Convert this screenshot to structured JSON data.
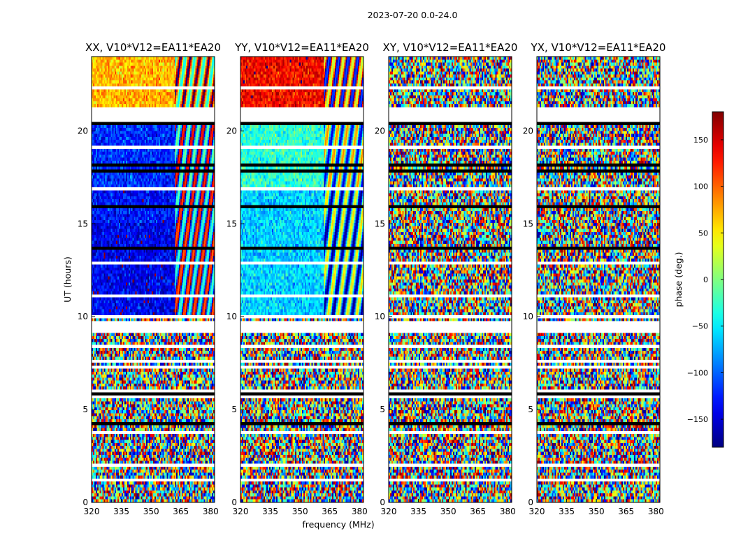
{
  "figure": {
    "suptitle": "2023-07-20 0.0-24.0"
  },
  "chart_data": {
    "type": "heatmap",
    "title": "2023-07-20 0.0-24.0",
    "xlabel": "frequency (MHz)",
    "ylabel": "UT (hours)",
    "xlim": [
      320,
      382
    ],
    "ylim": [
      0,
      24
    ],
    "xticks": [
      "320",
      "335",
      "350",
      "365",
      "380"
    ],
    "yticks": [
      "0",
      "5",
      "10",
      "15",
      "20"
    ],
    "colorbar": {
      "label": "phase (deg.)",
      "range": [
        -180,
        180
      ],
      "ticks": [
        "150",
        "100",
        "50",
        "0",
        "−50",
        "−100",
        "−150"
      ],
      "colormap": "jet"
    },
    "panels": [
      {
        "title": "XX, V10*V12=EA11*EA20",
        "dominant_phase_by_ut": {
          "0-10": "random",
          "10-17": "blue (−100 to −150)",
          "17-21": "blue/cyan (−120)",
          "22-24": "orange/yellow (+50 to +100)"
        }
      },
      {
        "title": "YY, V10*V12=EA11*EA20",
        "dominant_phase_by_ut": {
          "0-10": "random",
          "10-17": "cyan/green (−50 to −80)",
          "17-21": "green/cyan (−30)",
          "22-24": "red (+130)"
        }
      },
      {
        "title": "XY, V10*V12=EA11*EA20",
        "dominant_phase_by_ut": {
          "0-24": "random"
        }
      },
      {
        "title": "YX, V10*V12=EA11*EA20",
        "dominant_phase_by_ut": {
          "0-24": "random"
        }
      }
    ]
  },
  "colors": {
    "blank_rows": "#ffffff",
    "flagged_rows": "#000000",
    "axes": "#000000"
  }
}
